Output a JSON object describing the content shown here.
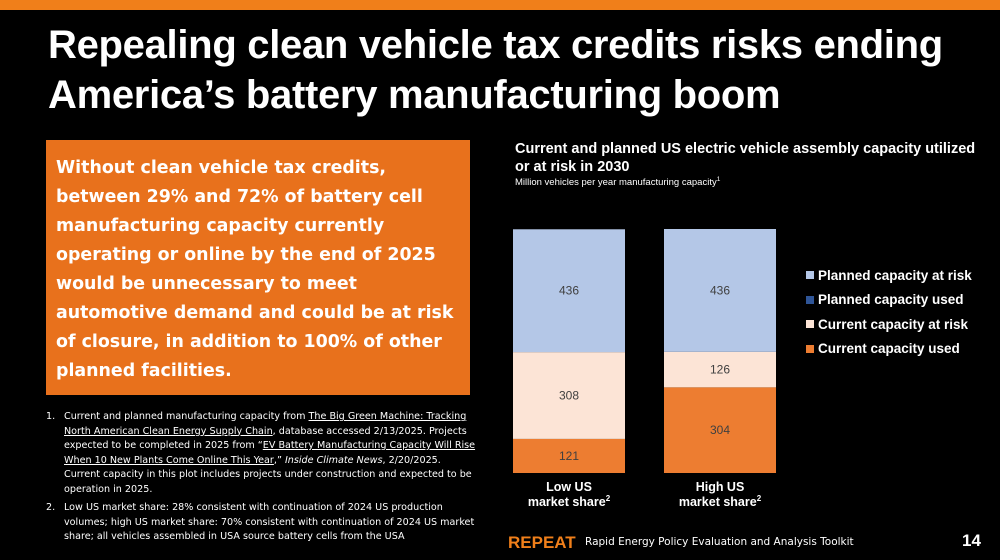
{
  "header": {
    "title": "Repealing clean vehicle tax credits risks ending America’s battery manufacturing boom"
  },
  "callout": {
    "text": "Without clean vehicle tax credits, between 29% and 72% of battery cell manufacturing capacity currently operating or online by the end of 2025 would be unnecessary to meet automotive demand and could be at risk of closure, in addition to 100% of other planned facilities."
  },
  "footnotes": {
    "n1": {
      "number": "1.",
      "t1": "Current and planned manufacturing capacity from ",
      "link1": "The Big Green Machine: Tracking North American Clean Energy Supply Chain",
      "t2": ", database accessed 2/13/2025. Projects expected to be completed in 2025 from “",
      "link2": "EV Battery Manufacturing Capacity Will Rise When 10 New Plants Come Online This Year",
      "t3": ",” ",
      "source": "Inside Climate News",
      "t4": ", 2/20/2025. Current capacity in this plot includes projects under construction and expected to be operation in 2025."
    },
    "n2": {
      "number": "2.",
      "text": "Low US market share: 28% consistent with continuation of 2024 US production volumes; high US market share: 70% consistent with continuation of 2024 US market share; all vehicles assembled in USA source battery cells from the USA"
    }
  },
  "chart": {
    "title": "Current and planned US electric vehicle assembly capacity utilized or at risk in 2030",
    "subtitle": "Million vehicles per year manufacturing capacity",
    "subtitle_sup": "1"
  },
  "chart_data": {
    "type": "bar",
    "stacked": true,
    "categories": [
      "Low US market share",
      "High US market share"
    ],
    "category_footnote": "2",
    "series": [
      {
        "name": "Current capacity used",
        "values": [
          121,
          304
        ],
        "color": "#ed7d31"
      },
      {
        "name": "Current capacity at risk",
        "values": [
          308,
          126
        ],
        "color": "#fce4d6"
      },
      {
        "name": "Planned capacity used",
        "values": [
          0,
          0
        ],
        "color": "#2f5597"
      },
      {
        "name": "Planned capacity at risk",
        "values": [
          436,
          436
        ],
        "color": "#b4c7e7"
      }
    ],
    "legend": {
      "position": "right",
      "order": [
        "Planned capacity at risk",
        "Planned capacity used",
        "Current capacity at risk",
        "Current capacity used"
      ]
    },
    "data_labels": true,
    "axis_visible": false,
    "grid": false
  },
  "footer": {
    "brand": "REPEAT",
    "tagline": "Rapid Energy Policy Evaluation and Analysis Toolkit",
    "page_number": "14"
  }
}
